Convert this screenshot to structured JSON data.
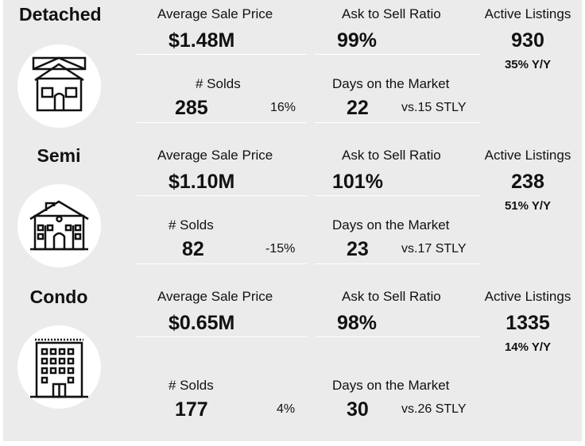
{
  "sections": [
    {
      "type": "Detached",
      "icon": "detached-house-icon",
      "avg_label": "Average Sale Price",
      "avg_value": "$1.48M",
      "ask_label": "Ask to Sell Ratio",
      "ask_value": "99%",
      "active_label": "Active Listings",
      "active_value": "930",
      "active_yy": "35% Y/Y",
      "solds_label": "# Solds",
      "solds_value": "285",
      "solds_change": "16%",
      "dom_label": "Days on the Market",
      "dom_value": "22",
      "dom_stly": "vs.15 STLY"
    },
    {
      "type": "Semi",
      "icon": "semi-detached-house-icon",
      "avg_label": "Average Sale Price",
      "avg_value": "$1.10M",
      "ask_label": "Ask to Sell Ratio",
      "ask_value": "101%",
      "active_label": "Active Listings",
      "active_value": "238",
      "active_yy": "51% Y/Y",
      "solds_label": "# Solds",
      "solds_value": "82",
      "solds_change": "-15%",
      "dom_label": "Days on the Market",
      "dom_value": "23",
      "dom_stly": "vs.17 STLY"
    },
    {
      "type": "Condo",
      "icon": "condo-building-icon",
      "avg_label": "Average Sale Price",
      "avg_value": "$0.65M",
      "ask_label": "Ask to Sell Ratio",
      "ask_value": "98%",
      "active_label": "Active Listings",
      "active_value": "1335",
      "active_yy": "14% Y/Y",
      "solds_label": "# Solds",
      "solds_value": "177",
      "solds_change": "4%",
      "dom_label": "Days on the Market",
      "dom_value": "30",
      "dom_stly": "vs.26 STLY"
    }
  ],
  "colors": {
    "panel": "#ebebeb",
    "divider": "#ffffff",
    "text": "#111111"
  }
}
